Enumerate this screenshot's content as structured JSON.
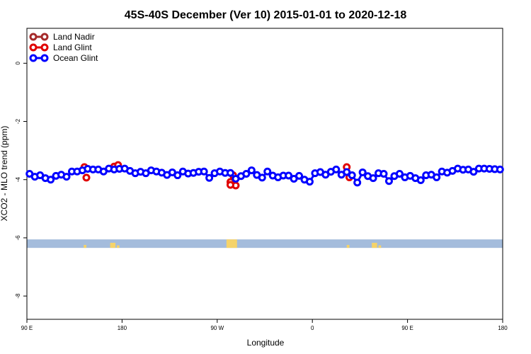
{
  "chart_data": {
    "type": "line",
    "title": "45S-40S December (Ver 10)   2015-01-01 to 2020-12-18",
    "xlabel": "Longitude",
    "ylabel": "XCO2 - MLO trend (ppm)",
    "xlim": [
      90,
      450
    ],
    "ylim": [
      -8.8,
      1.2
    ],
    "x_ticks": [
      {
        "value": 90,
        "label": "90 E"
      },
      {
        "value": 162,
        "label": "180"
      },
      {
        "value": 234,
        "label": "90 W"
      },
      {
        "value": 306,
        "label": "0"
      },
      {
        "value": 378,
        "label": "90 E"
      },
      {
        "value": 450,
        "label": "180"
      }
    ],
    "y_ticks": [
      {
        "value": 0,
        "label": "0"
      },
      {
        "value": -2,
        "label": "-2"
      },
      {
        "value": -4,
        "label": "-4"
      },
      {
        "value": -6,
        "label": "-6"
      },
      {
        "value": -8,
        "label": "-8"
      }
    ],
    "legend_position": "top-left",
    "series": [
      {
        "name": "Land Nadir",
        "color": "#a52a2a",
        "x": [],
        "y": []
      },
      {
        "name": "Land Glint",
        "color": "#e00000",
        "x": [
          133.5,
          135,
          156,
          159,
          244,
          246,
          248,
          332,
          334
        ],
        "y": [
          -3.57,
          -3.93,
          -3.55,
          -3.5,
          -4.08,
          -3.85,
          -4.2,
          -3.57,
          -3.92
        ],
        "x_extra": [
          244
        ],
        "y_extra": [
          -4.18
        ]
      },
      {
        "name": "Ocean Glint",
        "color": "#0000ff",
        "x": [
          92,
          96,
          100,
          104,
          108,
          112,
          116,
          120,
          124,
          128,
          132,
          136,
          140,
          144,
          148,
          152,
          156,
          160,
          164,
          168,
          172,
          176,
          180,
          184,
          188,
          192,
          196,
          200,
          204,
          208,
          212,
          216,
          220,
          224,
          228,
          232,
          236,
          240,
          244,
          248,
          252,
          256,
          260,
          264,
          268,
          272,
          276,
          280,
          284,
          288,
          292,
          296,
          300,
          304,
          308,
          312,
          316,
          320,
          324,
          328,
          332,
          336,
          340,
          344,
          348,
          352,
          356,
          360,
          364,
          368,
          372,
          376,
          380,
          384,
          388,
          392,
          396,
          400,
          404,
          408,
          412,
          416,
          420,
          424,
          428,
          432,
          436,
          440,
          444,
          448
        ],
        "y": [
          -3.8,
          -3.9,
          -3.85,
          -3.95,
          -4.0,
          -3.87,
          -3.83,
          -3.9,
          -3.72,
          -3.72,
          -3.68,
          -3.63,
          -3.65,
          -3.65,
          -3.72,
          -3.62,
          -3.65,
          -3.63,
          -3.62,
          -3.7,
          -3.78,
          -3.73,
          -3.78,
          -3.68,
          -3.72,
          -3.76,
          -3.84,
          -3.75,
          -3.85,
          -3.72,
          -3.79,
          -3.77,
          -3.73,
          -3.72,
          -3.94,
          -3.78,
          -3.72,
          -3.77,
          -3.77,
          -3.97,
          -3.88,
          -3.8,
          -3.68,
          -3.84,
          -3.93,
          -3.72,
          -3.86,
          -3.92,
          -3.86,
          -3.86,
          -3.97,
          -3.87,
          -4.0,
          -4.07,
          -3.78,
          -3.74,
          -3.83,
          -3.73,
          -3.65,
          -3.83,
          -3.74,
          -3.85,
          -4.1,
          -3.75,
          -3.88,
          -3.95,
          -3.78,
          -3.8,
          -4.05,
          -3.88,
          -3.8,
          -3.92,
          -3.87,
          -3.95,
          -4.02,
          -3.85,
          -3.83,
          -3.92,
          -3.72,
          -3.76,
          -3.7,
          -3.62,
          -3.66,
          -3.65,
          -3.73,
          -3.62,
          -3.62,
          -3.63,
          -3.64,
          -3.65
        ]
      }
    ],
    "land_band": {
      "y_center": -6.2,
      "description": "land/ocean indicator band"
    }
  }
}
